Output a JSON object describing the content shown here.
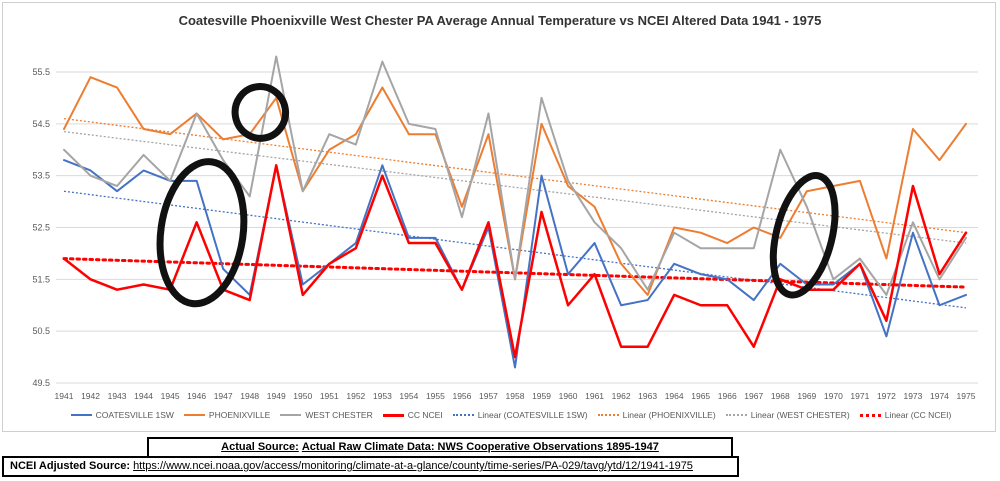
{
  "chart_data": {
    "type": "line",
    "title": "Coatesville Phoenixville West Chester PA Average Annual Temperature vs NCEI Altered Data 1941 - 1975",
    "x": [
      1941,
      1942,
      1943,
      1944,
      1945,
      1946,
      1947,
      1948,
      1949,
      1950,
      1951,
      1952,
      1953,
      1954,
      1955,
      1956,
      1957,
      1958,
      1959,
      1960,
      1961,
      1962,
      1963,
      1964,
      1965,
      1966,
      1967,
      1968,
      1969,
      1970,
      1971,
      1972,
      1973,
      1974,
      1975
    ],
    "ylim": [
      49.5,
      55.5
    ],
    "yticks": [
      49.5,
      50.5,
      51.5,
      52.5,
      53.5,
      54.5,
      55.5
    ],
    "grid": true,
    "legend_position": "bottom",
    "series": [
      {
        "name": "COATESVILLE 1SW",
        "color": "#4472C4",
        "width": 2,
        "values": [
          53.8,
          53.6,
          53.2,
          53.6,
          53.4,
          53.4,
          51.7,
          51.2,
          53.7,
          51.4,
          51.8,
          52.2,
          53.7,
          52.3,
          52.3,
          51.3,
          52.5,
          49.8,
          53.5,
          51.6,
          52.2,
          51.0,
          51.1,
          51.8,
          51.6,
          51.5,
          51.1,
          51.8,
          51.4,
          51.4,
          51.8,
          50.4,
          52.4,
          51.0,
          51.2
        ]
      },
      {
        "name": "PHOENIXVILLE",
        "color": "#ED7D31",
        "width": 2,
        "values": [
          54.4,
          55.4,
          55.2,
          54.4,
          54.3,
          54.7,
          54.2,
          54.3,
          55.0,
          53.2,
          54.0,
          54.3,
          55.2,
          54.3,
          54.3,
          52.9,
          54.3,
          51.5,
          54.5,
          53.3,
          52.9,
          51.8,
          51.2,
          52.5,
          52.4,
          52.2,
          52.5,
          52.3,
          53.2,
          53.3,
          53.4,
          51.9,
          54.4,
          53.8,
          54.5
        ]
      },
      {
        "name": "WEST CHESTER",
        "color": "#A5A5A5",
        "width": 2,
        "values": [
          54.0,
          53.5,
          53.3,
          53.9,
          53.4,
          54.7,
          53.8,
          53.1,
          55.8,
          53.2,
          54.3,
          54.1,
          55.7,
          54.5,
          54.4,
          52.7,
          54.7,
          51.5,
          55.0,
          53.4,
          52.6,
          52.1,
          51.3,
          52.4,
          52.1,
          52.1,
          52.1,
          54.0,
          52.9,
          51.5,
          51.9,
          51.2,
          52.6,
          51.5,
          52.3
        ]
      },
      {
        "name": "CC NCEI",
        "color": "#FF0000",
        "width": 2.5,
        "values": [
          51.9,
          51.5,
          51.3,
          51.4,
          51.3,
          52.6,
          51.3,
          51.1,
          53.7,
          51.2,
          51.8,
          52.1,
          53.5,
          52.2,
          52.2,
          51.3,
          52.6,
          50.0,
          52.8,
          51.0,
          51.6,
          50.2,
          50.2,
          51.2,
          51.0,
          51.0,
          50.2,
          51.5,
          51.3,
          51.3,
          51.8,
          50.7,
          53.3,
          51.6,
          52.4
        ]
      }
    ],
    "trendlines": [
      {
        "name": "Linear (COATESVILLE 1SW)",
        "color": "#4472C4",
        "start": 53.2,
        "end": 50.95,
        "width": 1.3
      },
      {
        "name": "Linear (PHOENIXVILLE)",
        "color": "#ED7D31",
        "start": 54.6,
        "end": 52.4,
        "width": 1.3
      },
      {
        "name": "Linear (WEST CHESTER)",
        "color": "#A5A5A5",
        "start": 54.35,
        "end": 52.2,
        "width": 1.3
      },
      {
        "name": "Linear (CC NCEI)",
        "color": "#FF0000",
        "start": 51.9,
        "end": 51.35,
        "width": 3
      }
    ],
    "annotations": {
      "ellipses": [
        {
          "cx_year": 1948.4,
          "cy_val": 54.72,
          "rx_years": 0.95,
          "ry_vals": 0.5,
          "rotate": -10
        },
        {
          "cx_year": 1946.2,
          "cy_val": 52.4,
          "rx_years": 1.55,
          "ry_vals": 1.38,
          "rotate": 8
        },
        {
          "cx_year": 1968.9,
          "cy_val": 52.35,
          "rx_years": 1.05,
          "ry_vals": 1.18,
          "rotate": 14
        }
      ]
    }
  },
  "sources": {
    "actual_label": "Actual Source:",
    "actual_text": "Actual Raw Climate Data: NWS Cooperative Observations 1895-1947",
    "ncei_label": "NCEI Adjusted Source:",
    "ncei_url": "https://www.ncei.noaa.gov/access/monitoring/climate-at-a-glance/county/time-series/PA-029/tavg/ytd/12/1941-1975"
  }
}
